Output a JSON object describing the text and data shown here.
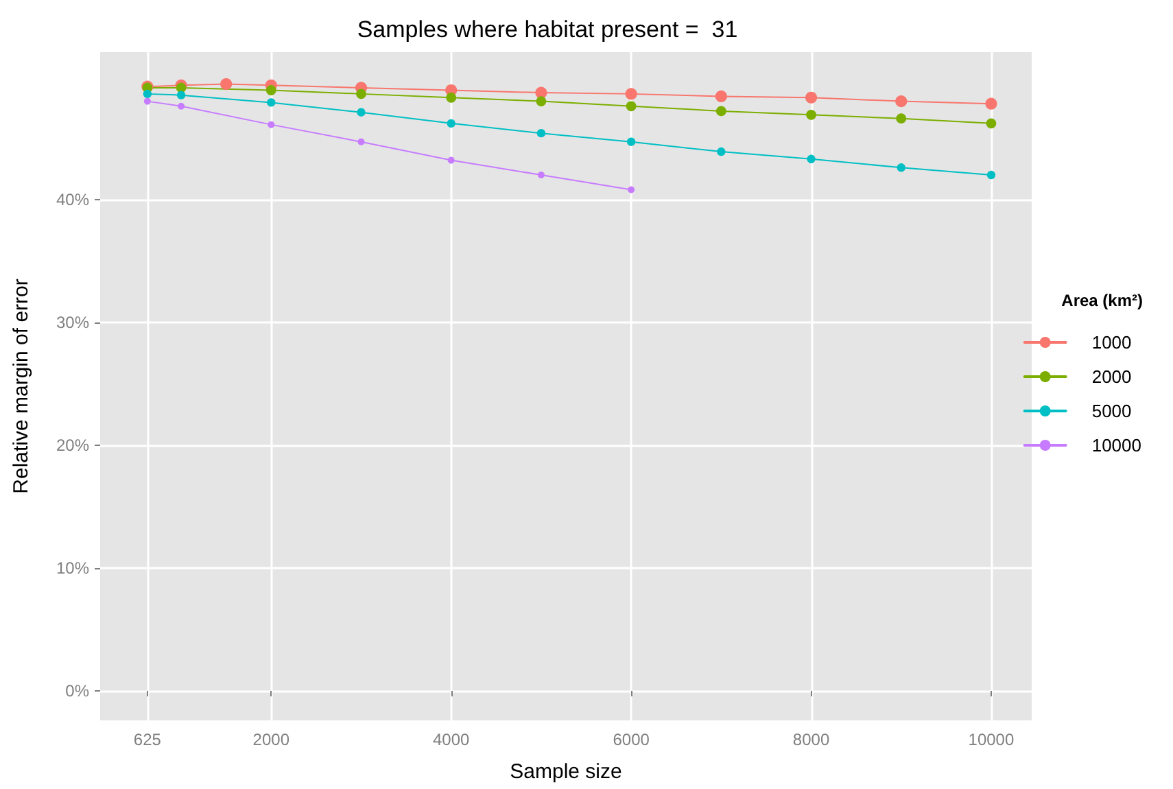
{
  "chart_data": {
    "type": "line",
    "title": "Samples where habitat present =  31",
    "xlabel": "Sample size",
    "ylabel": "Relative margin of error",
    "legend_title": "Area (km²)",
    "legend": "right",
    "grid": true,
    "marker": "circle",
    "line_style": "solid",
    "xlim": [
      100,
      10450
    ],
    "xticks": [
      625,
      2000,
      4000,
      6000,
      8000,
      10000
    ],
    "ylim": [
      -2.4,
      52
    ],
    "yticks": [
      {
        "value": 0,
        "label": "0%"
      },
      {
        "value": 10,
        "label": "10%"
      },
      {
        "value": 20,
        "label": "20%"
      },
      {
        "value": 30,
        "label": "30%"
      },
      {
        "value": 40,
        "label": "40%"
      }
    ],
    "series": [
      {
        "name": "1000",
        "color": "#f8766d",
        "x": [
          625,
          1000,
          1500,
          2000,
          3000,
          4000,
          5000,
          6000,
          7000,
          8000,
          9000,
          10000
        ],
        "values": [
          49.2,
          49.3,
          49.4,
          49.3,
          49.1,
          48.9,
          48.7,
          48.6,
          48.4,
          48.3,
          48.0,
          47.8
        ]
      },
      {
        "name": "2000",
        "color": "#7cae00",
        "x": [
          625,
          1000,
          2000,
          3000,
          4000,
          5000,
          6000,
          7000,
          8000,
          9000,
          10000
        ],
        "values": [
          49.1,
          49.1,
          48.9,
          48.6,
          48.3,
          48.0,
          47.6,
          47.2,
          46.9,
          46.6,
          46.2
        ]
      },
      {
        "name": "5000",
        "color": "#00bfc4",
        "x": [
          625,
          1000,
          2000,
          3000,
          4000,
          5000,
          6000,
          7000,
          8000,
          9000,
          10000
        ],
        "values": [
          48.6,
          48.5,
          47.9,
          47.1,
          46.2,
          45.4,
          44.7,
          43.9,
          43.3,
          42.6,
          42.0
        ]
      },
      {
        "name": "10000",
        "color": "#c77cff",
        "x": [
          625,
          1000,
          2000,
          3000,
          4000,
          5000,
          6000
        ],
        "values": [
          48.0,
          47.6,
          46.1,
          44.7,
          43.2,
          42.0,
          40.8
        ]
      }
    ]
  }
}
